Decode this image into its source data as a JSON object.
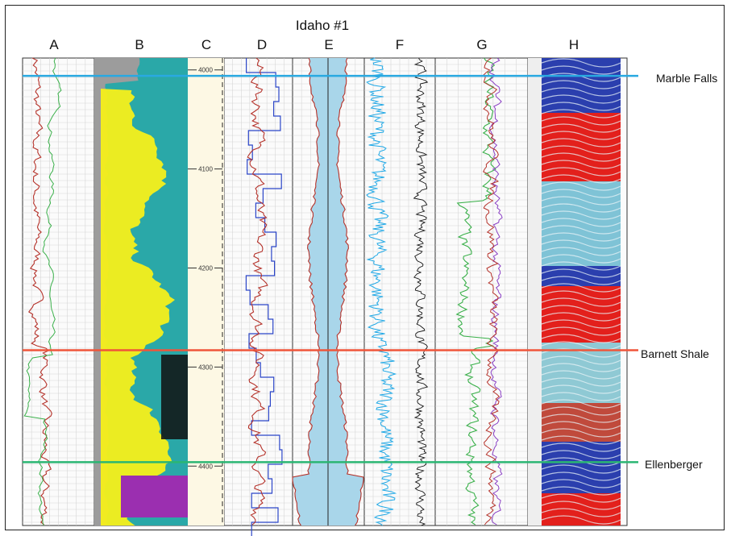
{
  "well": {
    "title": "Idaho #1"
  },
  "tracks": [
    {
      "id": "A",
      "label": "A"
    },
    {
      "id": "B",
      "label": "B"
    },
    {
      "id": "C",
      "label": "C"
    },
    {
      "id": "D",
      "label": "D"
    },
    {
      "id": "E",
      "label": "E"
    },
    {
      "id": "F",
      "label": "F"
    },
    {
      "id": "G",
      "label": "G"
    },
    {
      "id": "H",
      "label": "H"
    }
  ],
  "formations": [
    {
      "name": "Marble Falls",
      "depth": 4006,
      "color": "#29a9e1"
    },
    {
      "name": "Barnett Shale",
      "depth": 4283,
      "color": "#f0553a"
    },
    {
      "name": "Ellenberger",
      "depth": 4396,
      "color": "#2bb673"
    }
  ],
  "chart_data": {
    "type": "line",
    "title": "Idaho #1",
    "depth_range": [
      3988,
      4460
    ],
    "depth_ticks": [
      4000,
      4100,
      4200,
      4300,
      4400
    ],
    "depth_tick_labels": [
      "4000",
      "4100",
      "4200",
      "4300",
      "4400"
    ],
    "colors": {
      "curve_red": "#b5322a",
      "curve_green": "#3ab04a",
      "curve_blue": "#2b45c8",
      "curve_cyan": "#1fa8e6",
      "curve_purple": "#8a3fc4",
      "lithology_yellow": "#f5ef1a",
      "lithology_teal": "#2aa8a8",
      "lithology_grey": "#9c9c9c",
      "lithology_purple": "#9b2fb0",
      "track_fill_blue": "#a9d6ea",
      "h_blue": "#2b3fae",
      "h_red": "#e3201c"
    }
  }
}
